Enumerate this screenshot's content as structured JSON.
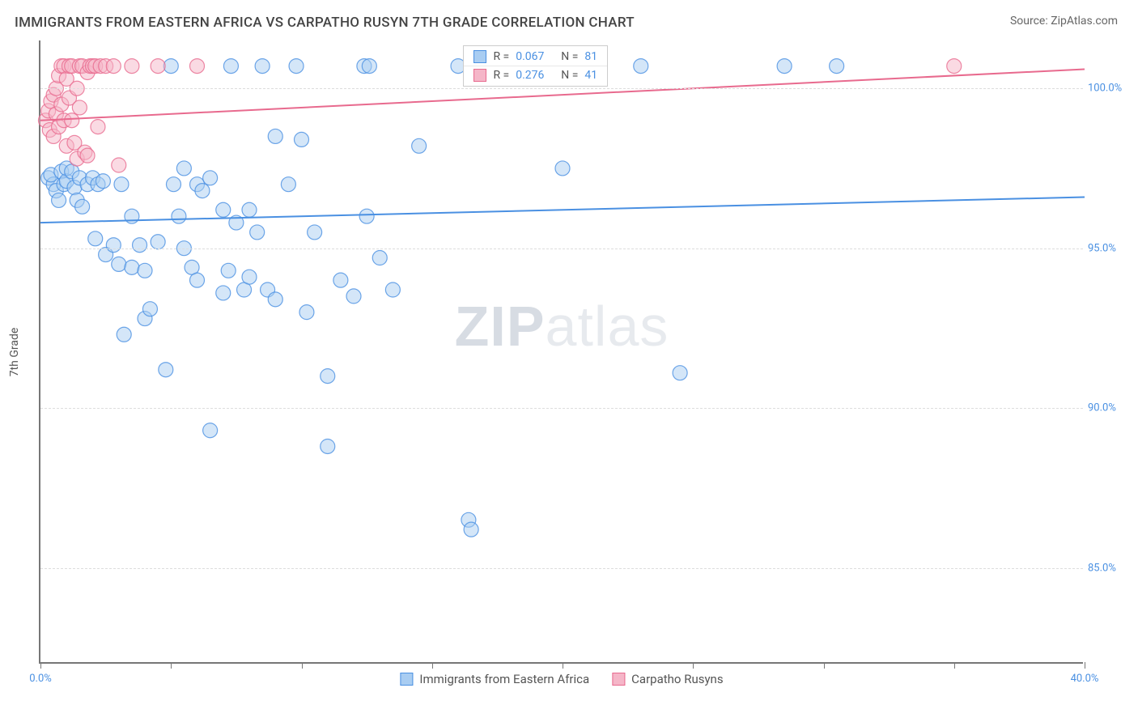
{
  "title": "IMMIGRANTS FROM EASTERN AFRICA VS CARPATHO RUSYN 7TH GRADE CORRELATION CHART",
  "source_label": "Source: ",
  "source": "ZipAtlas.com",
  "ylabel": "7th Grade",
  "watermark_a": "ZIP",
  "watermark_b": "atlas",
  "chart": {
    "type": "scatter",
    "xlim": [
      0,
      40
    ],
    "ylim": [
      82,
      101.5
    ],
    "x_ticks": [
      0,
      5,
      10,
      15,
      20,
      25,
      30,
      35,
      40
    ],
    "x_tick_labels": {
      "0": "0.0%",
      "40": "40.0%"
    },
    "y_ticks": [
      85,
      90,
      95,
      100
    ],
    "y_tick_labels": [
      "85.0%",
      "90.0%",
      "95.0%",
      "100.0%"
    ],
    "background_color": "#ffffff",
    "grid_color": "#dddddd",
    "axis_color": "#777777",
    "point_radius": 9,
    "point_opacity": 0.5,
    "point_stroke_opacity": 0.8,
    "line_width": 2,
    "label_fontsize": 14,
    "tick_fontsize": 13,
    "series": [
      {
        "name": "Immigrants from Eastern Africa",
        "color": "#4a90e2",
        "fill": "#a9cdf2",
        "R": "0.067",
        "N": "81",
        "trend": {
          "x1": 0,
          "y1": 95.8,
          "x2": 40,
          "y2": 96.6
        },
        "points": [
          [
            0.3,
            97.2
          ],
          [
            0.5,
            97.0
          ],
          [
            0.6,
            96.8
          ],
          [
            0.4,
            97.3
          ],
          [
            0.8,
            97.4
          ],
          [
            0.9,
            97.0
          ],
          [
            0.7,
            96.5
          ],
          [
            1.0,
            97.1
          ],
          [
            1.0,
            97.5
          ],
          [
            1.3,
            96.9
          ],
          [
            1.2,
            97.4
          ],
          [
            1.5,
            97.2
          ],
          [
            1.4,
            96.5
          ],
          [
            1.6,
            96.3
          ],
          [
            1.8,
            97.0
          ],
          [
            2.0,
            97.2
          ],
          [
            2.2,
            97.0
          ],
          [
            2.1,
            95.3
          ],
          [
            2.5,
            94.8
          ],
          [
            2.4,
            97.1
          ],
          [
            2.8,
            95.1
          ],
          [
            3.0,
            94.5
          ],
          [
            3.1,
            97.0
          ],
          [
            3.2,
            92.3
          ],
          [
            3.5,
            94.4
          ],
          [
            3.5,
            96.0
          ],
          [
            3.8,
            95.1
          ],
          [
            4.0,
            92.8
          ],
          [
            4.0,
            94.3
          ],
          [
            4.2,
            93.1
          ],
          [
            4.5,
            95.2
          ],
          [
            4.8,
            91.2
          ],
          [
            5.0,
            100.7
          ],
          [
            5.1,
            97.0
          ],
          [
            5.3,
            96.0
          ],
          [
            5.5,
            95.0
          ],
          [
            5.5,
            97.5
          ],
          [
            5.8,
            94.4
          ],
          [
            6.0,
            97.0
          ],
          [
            6.0,
            94.0
          ],
          [
            6.2,
            96.8
          ],
          [
            6.5,
            97.2
          ],
          [
            6.5,
            89.3
          ],
          [
            7.0,
            93.6
          ],
          [
            7.0,
            96.2
          ],
          [
            7.2,
            94.3
          ],
          [
            7.3,
            100.7
          ],
          [
            7.5,
            95.8
          ],
          [
            7.8,
            93.7
          ],
          [
            8.0,
            96.2
          ],
          [
            8.0,
            94.1
          ],
          [
            8.3,
            95.5
          ],
          [
            8.5,
            100.7
          ],
          [
            8.7,
            93.7
          ],
          [
            9.0,
            98.5
          ],
          [
            9.0,
            93.4
          ],
          [
            9.5,
            97.0
          ],
          [
            9.8,
            100.7
          ],
          [
            10.0,
            98.4
          ],
          [
            10.2,
            93.0
          ],
          [
            10.5,
            95.5
          ],
          [
            11.0,
            91.0
          ],
          [
            11.0,
            88.8
          ],
          [
            11.5,
            94.0
          ],
          [
            12.0,
            93.5
          ],
          [
            12.4,
            100.7
          ],
          [
            12.5,
            96.0
          ],
          [
            12.6,
            100.7
          ],
          [
            13.0,
            94.7
          ],
          [
            13.5,
            93.7
          ],
          [
            14.5,
            98.2
          ],
          [
            16.0,
            100.7
          ],
          [
            16.4,
            86.5
          ],
          [
            16.5,
            86.2
          ],
          [
            18.3,
            100.7
          ],
          [
            19.8,
            100.7
          ],
          [
            20.0,
            97.5
          ],
          [
            23.0,
            100.7
          ],
          [
            24.5,
            91.1
          ],
          [
            28.5,
            100.7
          ],
          [
            30.5,
            100.7
          ]
        ]
      },
      {
        "name": "Carpatho Rusyns",
        "color": "#e86a8e",
        "fill": "#f5b6c8",
        "R": "0.276",
        "N": "41",
        "trend": {
          "x1": 0,
          "y1": 99.0,
          "x2": 40,
          "y2": 100.6
        },
        "points": [
          [
            0.2,
            99.0
          ],
          [
            0.3,
            99.3
          ],
          [
            0.4,
            99.6
          ],
          [
            0.35,
            98.7
          ],
          [
            0.5,
            99.8
          ],
          [
            0.5,
            98.5
          ],
          [
            0.6,
            100.0
          ],
          [
            0.6,
            99.2
          ],
          [
            0.7,
            100.4
          ],
          [
            0.7,
            98.8
          ],
          [
            0.8,
            100.7
          ],
          [
            0.8,
            99.5
          ],
          [
            0.9,
            99.0
          ],
          [
            0.9,
            100.7
          ],
          [
            1.0,
            100.3
          ],
          [
            1.0,
            98.2
          ],
          [
            1.1,
            99.7
          ],
          [
            1.1,
            100.7
          ],
          [
            1.2,
            99.0
          ],
          [
            1.2,
            100.7
          ],
          [
            1.3,
            98.3
          ],
          [
            1.4,
            100.0
          ],
          [
            1.4,
            97.8
          ],
          [
            1.5,
            100.7
          ],
          [
            1.5,
            99.4
          ],
          [
            1.6,
            100.7
          ],
          [
            1.7,
            98.0
          ],
          [
            1.8,
            100.5
          ],
          [
            1.8,
            97.9
          ],
          [
            1.9,
            100.7
          ],
          [
            2.0,
            100.7
          ],
          [
            2.1,
            100.7
          ],
          [
            2.2,
            98.8
          ],
          [
            2.3,
            100.7
          ],
          [
            2.5,
            100.7
          ],
          [
            2.8,
            100.7
          ],
          [
            3.0,
            97.6
          ],
          [
            3.5,
            100.7
          ],
          [
            4.5,
            100.7
          ],
          [
            6.0,
            100.7
          ],
          [
            35.0,
            100.7
          ]
        ]
      }
    ]
  },
  "legend_top": {
    "r_label": "R =",
    "n_label": "N =",
    "value_color": "#4a90e2",
    "text_color": "#555555"
  },
  "legend_bottom": {
    "items": [
      "Immigrants from Eastern Africa",
      "Carpatho Rusyns"
    ]
  },
  "xtick_label_color": "#4a90e2",
  "ytick_label_color": "#4a90e2"
}
